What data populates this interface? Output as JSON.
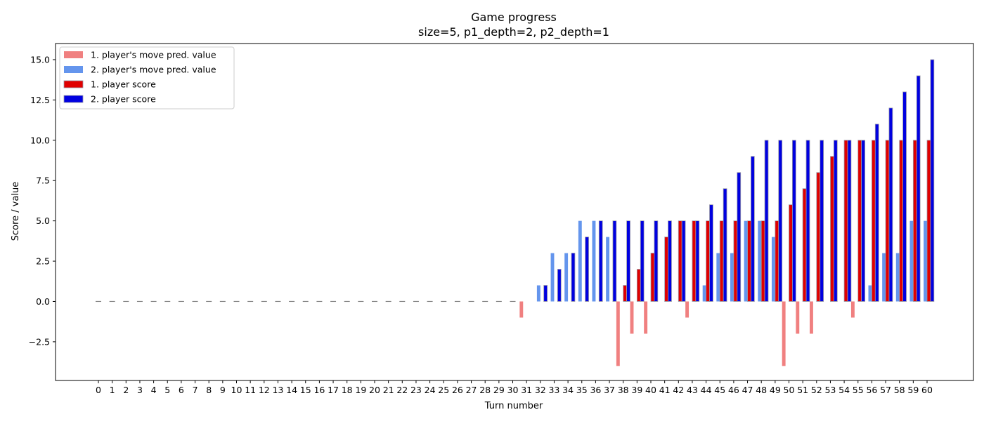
{
  "chart_data": {
    "type": "bar",
    "title": "Game progress",
    "subtitle": "size=5, p1_depth=2, p2_depth=1",
    "xlabel": "Turn number",
    "ylabel": "Score / value",
    "ylim": [
      -4.9,
      16.0
    ],
    "yticks": [
      -2.5,
      0.0,
      2.5,
      5.0,
      7.5,
      10.0,
      12.5,
      15.0
    ],
    "ytick_labels": [
      "−2.5",
      "0.0",
      "2.5",
      "5.0",
      "7.5",
      "10.0",
      "12.5",
      "15.0"
    ],
    "grid": false,
    "legend_position": "top-left",
    "x": [
      0,
      1,
      2,
      3,
      4,
      5,
      6,
      7,
      8,
      9,
      10,
      11,
      12,
      13,
      14,
      15,
      16,
      17,
      18,
      19,
      20,
      21,
      22,
      23,
      24,
      25,
      26,
      27,
      28,
      29,
      30,
      31,
      32,
      33,
      34,
      35,
      36,
      37,
      38,
      39,
      40,
      41,
      42,
      43,
      44,
      45,
      46,
      47,
      48,
      49,
      50,
      51,
      52,
      53,
      54,
      55,
      56,
      57,
      58,
      59,
      60
    ],
    "series": [
      {
        "name": "1. player's move pred. value",
        "color": "#f08080",
        "values": [
          0,
          0,
          0,
          0,
          0,
          0,
          0,
          0,
          0,
          0,
          0,
          0,
          0,
          0,
          0,
          0,
          0,
          0,
          0,
          0,
          0,
          0,
          0,
          0,
          0,
          0,
          0,
          0,
          0,
          0,
          0,
          -1,
          0,
          0,
          0,
          0,
          0,
          0,
          -4,
          -2,
          -2,
          0,
          0,
          -1,
          0,
          0,
          0,
          0,
          0,
          0,
          -4,
          -2,
          -2,
          0,
          0,
          -1,
          0,
          0,
          0,
          0,
          0
        ]
      },
      {
        "name": "2. player's move pred. value",
        "color": "#6495ed",
        "values": [
          0,
          0,
          0,
          0,
          0,
          0,
          0,
          0,
          0,
          0,
          0,
          0,
          0,
          0,
          0,
          0,
          0,
          0,
          0,
          0,
          0,
          0,
          0,
          0,
          0,
          0,
          0,
          0,
          0,
          0,
          0,
          0,
          1,
          3,
          3,
          5,
          5,
          4,
          0,
          0,
          0,
          0,
          0,
          0,
          1,
          3,
          3,
          5,
          5,
          4,
          0,
          0,
          0,
          0,
          0,
          0,
          1,
          3,
          3,
          5,
          5
        ]
      },
      {
        "name": "1. player score",
        "color": "#e00000",
        "values": [
          0,
          0,
          0,
          0,
          0,
          0,
          0,
          0,
          0,
          0,
          0,
          0,
          0,
          0,
          0,
          0,
          0,
          0,
          0,
          0,
          0,
          0,
          0,
          0,
          0,
          0,
          0,
          0,
          0,
          0,
          0,
          0,
          0,
          0,
          0,
          0,
          0,
          0,
          1,
          2,
          3,
          4,
          5,
          5,
          5,
          5,
          5,
          5,
          5,
          5,
          6,
          7,
          8,
          9,
          10,
          10,
          10,
          10,
          10,
          10,
          10
        ]
      },
      {
        "name": "2. player score",
        "color": "#0000e0",
        "values": [
          0,
          0,
          0,
          0,
          0,
          0,
          0,
          0,
          0,
          0,
          0,
          0,
          0,
          0,
          0,
          0,
          0,
          0,
          0,
          0,
          0,
          0,
          0,
          0,
          0,
          0,
          0,
          0,
          0,
          0,
          0,
          0,
          1,
          2,
          3,
          4,
          5,
          5,
          5,
          5,
          5,
          5,
          5,
          5,
          6,
          7,
          8,
          9,
          10,
          10,
          10,
          10,
          10,
          10,
          10,
          10,
          11,
          12,
          13,
          14,
          15
        ]
      }
    ]
  }
}
